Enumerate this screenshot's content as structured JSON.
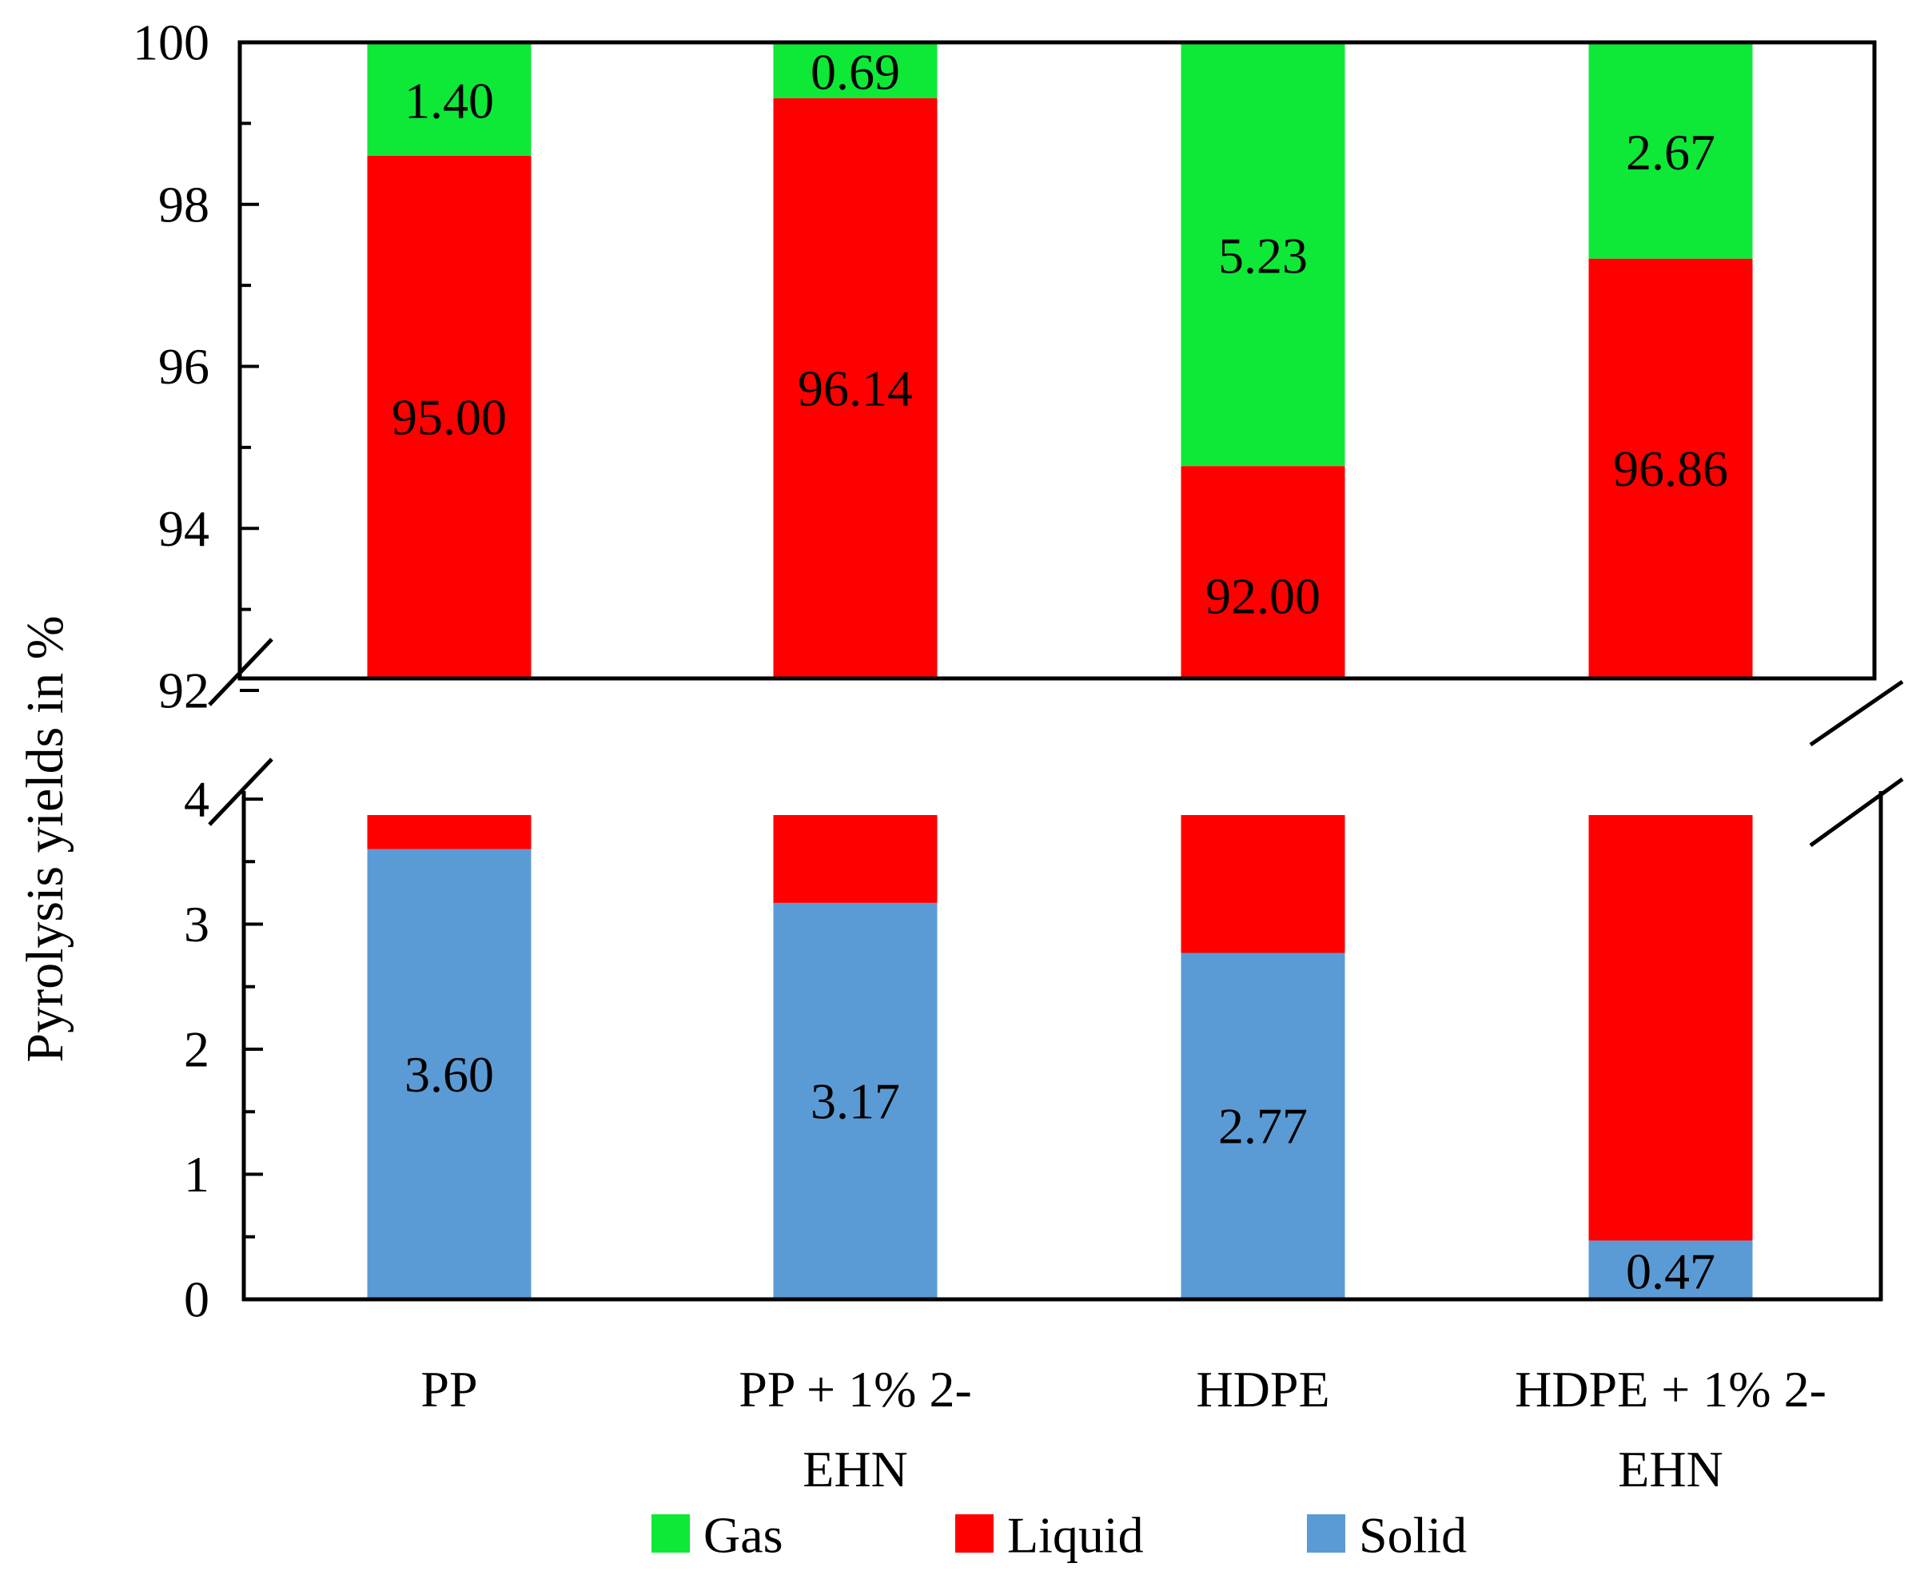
{
  "chart_data": {
    "type": "bar",
    "stacked": true,
    "broken_axis": true,
    "ylabel": "Pyrolysis yields in %",
    "xlabel": "",
    "categories": [
      [
        "PP"
      ],
      [
        "PP + 1% 2-",
        "EHN"
      ],
      [
        "HDPE"
      ],
      [
        "HDPE + 1% 2-",
        "EHN"
      ]
    ],
    "series": [
      {
        "name": "Solid",
        "color": "#5b9bd5",
        "values": [
          3.6,
          3.17,
          2.77,
          0.47
        ],
        "labels": [
          "3.60",
          "3.17",
          "2.77",
          "0.47"
        ]
      },
      {
        "name": "Liquid",
        "color": "#ff0000",
        "values": [
          95.0,
          96.14,
          92.0,
          96.86
        ],
        "labels": [
          "95.00",
          "96.14",
          "92.00",
          "96.86"
        ]
      },
      {
        "name": "Gas",
        "color": "#0ee837",
        "values": [
          1.4,
          0.69,
          5.23,
          2.67
        ],
        "labels": [
          "1.40",
          "0.69",
          "5.23",
          "2.67"
        ]
      }
    ],
    "upper_axis": {
      "ylim": [
        92,
        100
      ],
      "ticks": [
        "92",
        "94",
        "96",
        "98",
        "100"
      ]
    },
    "lower_axis": {
      "ylim": [
        0,
        4
      ],
      "ticks": [
        "0",
        "1",
        "2",
        "3",
        "4"
      ]
    },
    "legend": {
      "placement": "bottom",
      "items": [
        {
          "name": "Gas",
          "color": "#0ee837"
        },
        {
          "name": "Liquid",
          "color": "#ff0000"
        },
        {
          "name": "Solid",
          "color": "#5b9bd5"
        }
      ]
    }
  }
}
